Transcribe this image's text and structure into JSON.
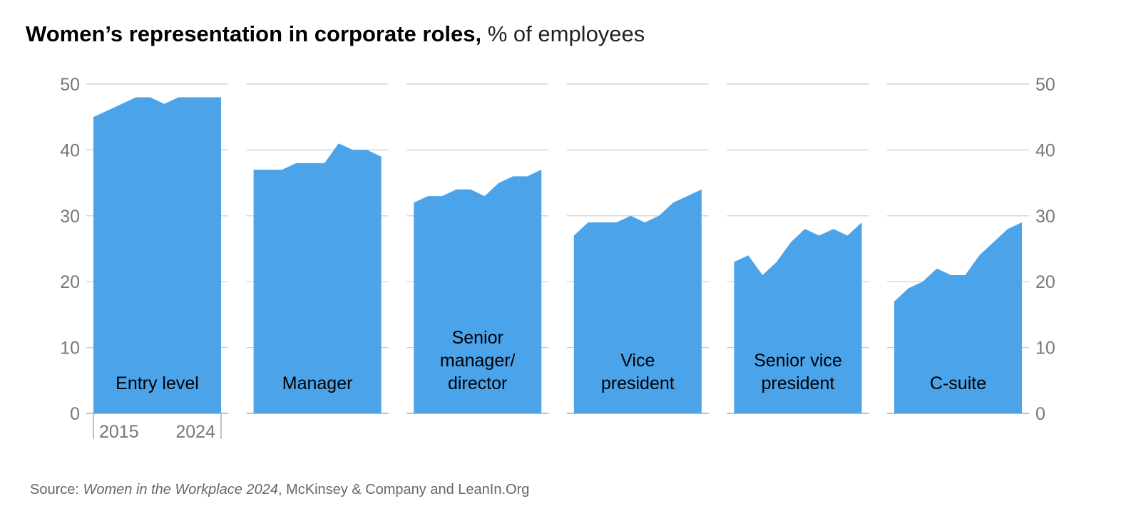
{
  "title": {
    "bold": "Women’s representation in corporate roles,",
    "light": "% of employees"
  },
  "source": {
    "prefix": "Source: ",
    "publication": "Women in the Workplace 2024",
    "suffix": ", McKinsey & Company and LeanIn.Org"
  },
  "colors": {
    "area": "#4BA3EA",
    "gridline": "#cccccc",
    "axis_text": "#777777",
    "label_text": "#000000"
  },
  "chart_data": {
    "type": "area",
    "x": [
      2015,
      2016,
      2017,
      2018,
      2019,
      2020,
      2021,
      2022,
      2023,
      2024
    ],
    "x_tick_labels": [
      "2015",
      "2024"
    ],
    "ylim": [
      0,
      50
    ],
    "yticks": [
      0,
      10,
      20,
      30,
      40,
      50
    ],
    "y_tick_labels": [
      "0",
      "10",
      "20",
      "30",
      "40",
      "50"
    ],
    "grid": true,
    "series": [
      {
        "name": "Entry level",
        "label_lines": [
          "Entry level"
        ],
        "values": [
          45,
          46,
          47,
          48,
          48,
          47,
          48,
          48,
          48,
          48
        ]
      },
      {
        "name": "Manager",
        "label_lines": [
          "Manager"
        ],
        "values": [
          37,
          37,
          37,
          38,
          38,
          38,
          41,
          40,
          40,
          39
        ]
      },
      {
        "name": "Senior manager/ director",
        "label_lines": [
          "Senior",
          "manager/",
          "director"
        ],
        "values": [
          32,
          33,
          33,
          34,
          34,
          33,
          35,
          36,
          36,
          37
        ]
      },
      {
        "name": "Vice president",
        "label_lines": [
          "Vice",
          "president"
        ],
        "values": [
          27,
          29,
          29,
          29,
          30,
          29,
          30,
          32,
          33,
          34
        ]
      },
      {
        "name": "Senior vice president",
        "label_lines": [
          "Senior vice",
          "president"
        ],
        "values": [
          23,
          24,
          21,
          23,
          26,
          28,
          27,
          28,
          27,
          29
        ]
      },
      {
        "name": "C-suite",
        "label_lines": [
          "C-suite"
        ],
        "values": [
          17,
          19,
          20,
          22,
          21,
          21,
          24,
          26,
          28,
          29
        ]
      }
    ]
  }
}
